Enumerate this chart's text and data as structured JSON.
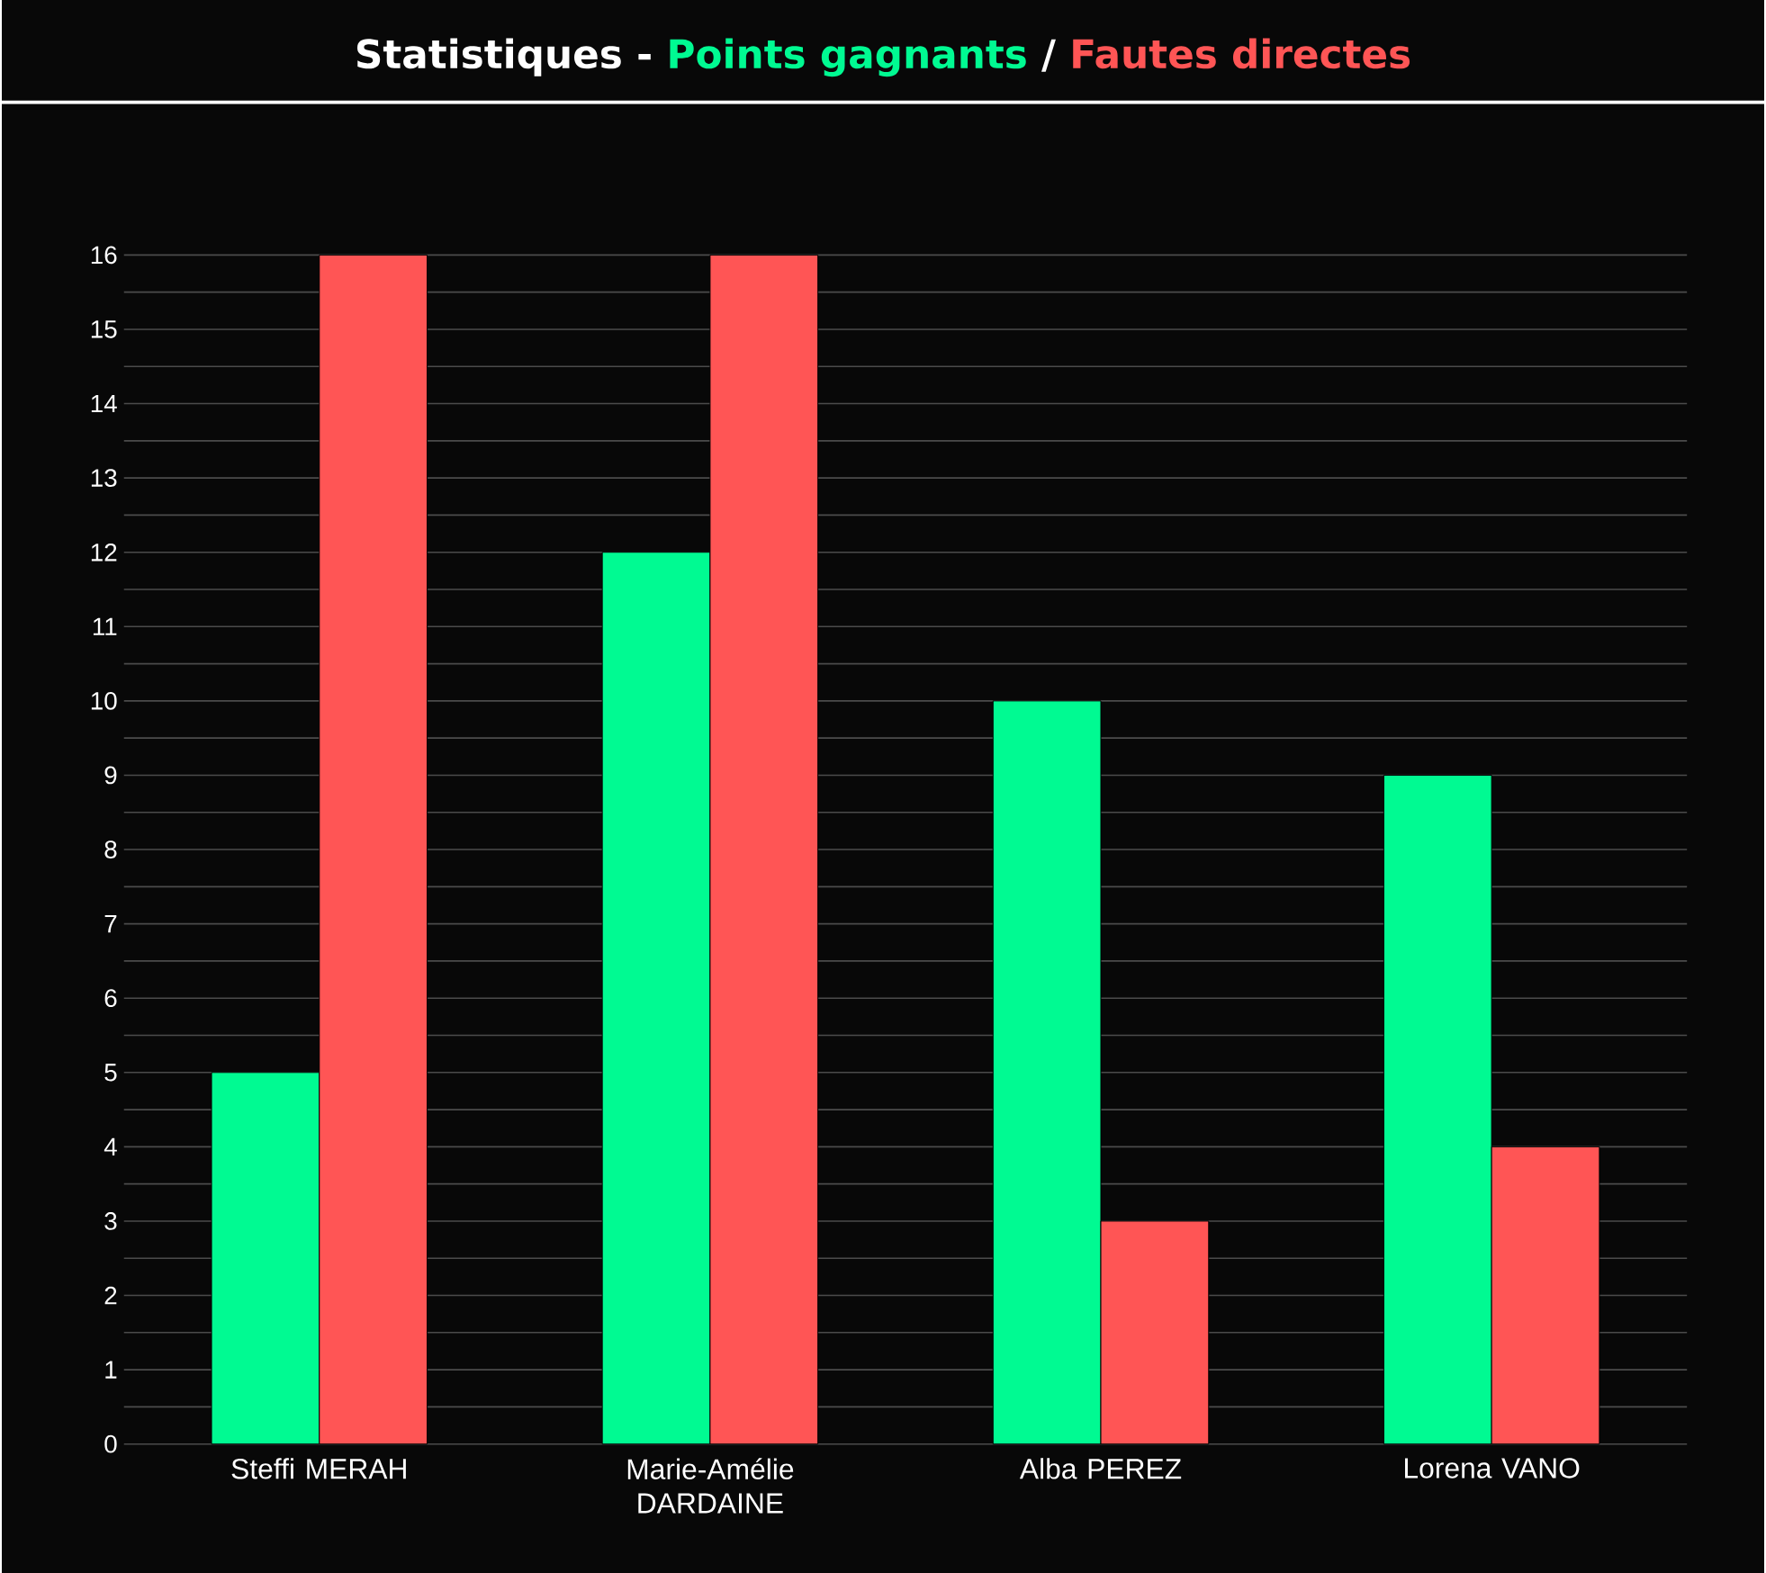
{
  "chart_data": {
    "type": "bar",
    "title": "Statistiques -",
    "categories": [
      "Steffi MERAH",
      "Marie-Amélie DARDAINE",
      "Alba PEREZ",
      "Lorena VANO"
    ],
    "series": [
      {
        "name": "Points gagnants",
        "color": "#00fa92",
        "values": [
          5,
          12,
          10,
          9
        ]
      },
      {
        "name": "Fautes directes",
        "color": "#ff5555",
        "values": [
          16,
          16,
          3,
          4
        ]
      }
    ],
    "annotations": [
      "/"
    ],
    "ylim": [
      0,
      16
    ],
    "yticks": [
      0,
      1,
      2,
      3,
      4,
      5,
      6,
      7,
      8,
      9,
      10,
      11,
      12,
      13,
      14,
      15,
      16
    ],
    "grid": "y",
    "legend": "top"
  }
}
